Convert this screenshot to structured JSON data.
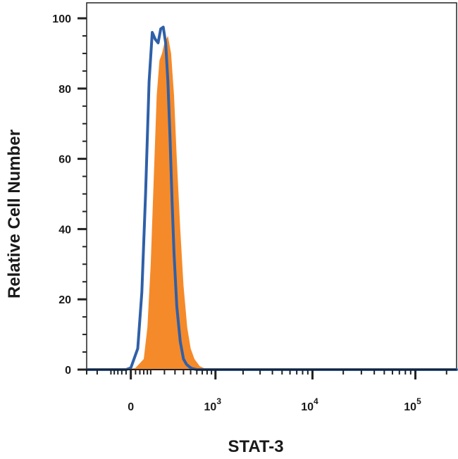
{
  "chart_data": {
    "type": "area",
    "title": "",
    "xlabel": "STAT-3",
    "ylabel": "Relative Cell Number",
    "x_scale": "biexponential",
    "xlim": [
      -300,
      250000
    ],
    "ylim": [
      0,
      100
    ],
    "grid": false,
    "x_ticks": [
      {
        "value": 0,
        "base": "0",
        "exp": ""
      },
      {
        "value": 1000,
        "base": "10",
        "exp": "3"
      },
      {
        "value": 10000,
        "base": "10",
        "exp": "4"
      },
      {
        "value": 100000,
        "base": "10",
        "exp": "5"
      }
    ],
    "y_ticks": [
      {
        "value": 0,
        "label": "0"
      },
      {
        "value": 20,
        "label": "20"
      },
      {
        "value": 40,
        "label": "40"
      },
      {
        "value": 60,
        "label": "60"
      },
      {
        "value": 80,
        "label": "80"
      },
      {
        "value": 100,
        "label": "100"
      }
    ],
    "series": [
      {
        "style": "filled",
        "color": "#f58a2a",
        "x": [
          -300,
          -20,
          20,
          60,
          80,
          100,
          120,
          140,
          160,
          180,
          200,
          230,
          260,
          290,
          320,
          360,
          400,
          450,
          500,
          560,
          650,
          800,
          250000
        ],
        "y": [
          0,
          0,
          0.5,
          3,
          12,
          30,
          55,
          78,
          88,
          90,
          93,
          95,
          90,
          78,
          60,
          40,
          24,
          12,
          6,
          3,
          1,
          0,
          0
        ]
      },
      {
        "style": "outline",
        "color": "#2f60a8",
        "x": [
          -300,
          -20,
          0,
          30,
          50,
          70,
          90,
          110,
          130,
          150,
          170,
          190,
          210,
          230,
          250,
          270,
          290,
          320,
          360,
          400,
          440,
          480,
          520,
          600,
          700,
          250000
        ],
        "y": [
          0,
          0,
          0.5,
          6,
          22,
          50,
          82,
          96,
          94,
          93,
          97,
          97.5,
          93,
          82,
          66,
          48,
          33,
          18,
          8,
          3,
          1.5,
          0.8,
          0.3,
          0,
          0,
          0
        ]
      }
    ]
  }
}
